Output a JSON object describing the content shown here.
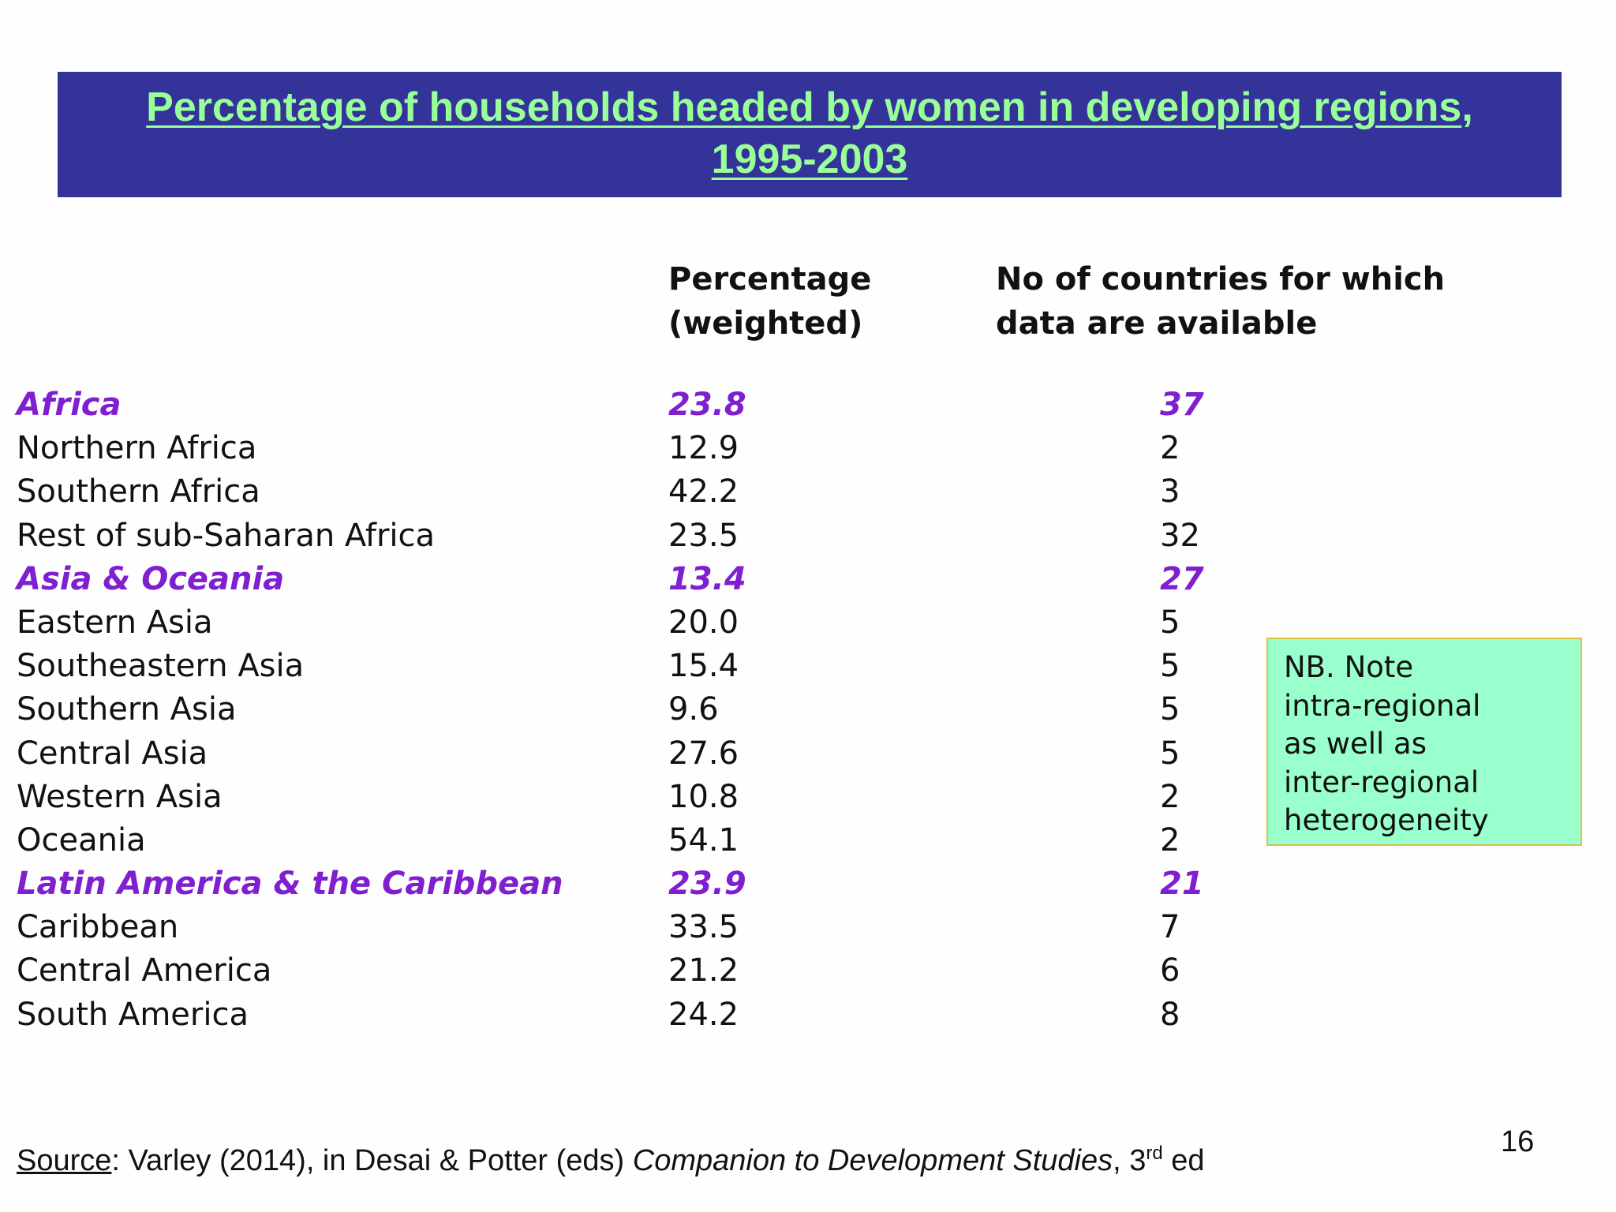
{
  "title": {
    "line1": "Percentage of households headed by women in developing regions",
    "line1_comma": ",",
    "line2": "1995-2003"
  },
  "columns": {
    "percentage": [
      "Percentage",
      "(weighted)"
    ],
    "countries": [
      "No of countries for which",
      "data are available"
    ]
  },
  "rows": [
    {
      "name": "Africa",
      "pct": "23.8",
      "count": "37",
      "region": true
    },
    {
      "name": "Northern Africa",
      "pct": "12.9",
      "count": "2",
      "region": false
    },
    {
      "name": "Southern Africa",
      "pct": "42.2",
      "count": "3",
      "region": false
    },
    {
      "name": "Rest of sub-Saharan Africa",
      "pct": "23.5",
      "count": "32",
      "region": false
    },
    {
      "name": "Asia & Oceania",
      "pct": "13.4",
      "count": "27",
      "region": true
    },
    {
      "name": "Eastern Asia",
      "pct": "20.0",
      "count": "5",
      "region": false
    },
    {
      "name": "Southeastern Asia",
      "pct": "15.4",
      "count": "5",
      "region": false
    },
    {
      "name": "Southern Asia",
      "pct": "9.6",
      "count": "5",
      "region": false
    },
    {
      "name": "Central Asia",
      "pct": "27.6",
      "count": "5",
      "region": false
    },
    {
      "name": "Western Asia",
      "pct": "10.8",
      "count": "2",
      "region": false
    },
    {
      "name": "Oceania",
      "pct": "54.1",
      "count": "2",
      "region": false
    },
    {
      "name": "Latin America & the Caribbean",
      "pct": "23.9",
      "count": "21",
      "region": true
    },
    {
      "name": "Caribbean",
      "pct": "33.5",
      "count": "7",
      "region": false
    },
    {
      "name": "Central America",
      "pct": "21.2",
      "count": "6",
      "region": false
    },
    {
      "name": "South America",
      "pct": "24.2",
      "count": "8",
      "region": false
    }
  ],
  "note": [
    "NB. Note",
    "intra-regional",
    "as well as",
    "inter-regional",
    "heterogeneity"
  ],
  "source": {
    "label": "Source",
    "text1": ": Varley (2014), in Desai & Potter (eds) ",
    "italic": "Companion to Development Studies",
    "text2": ", 3",
    "sup": "rd",
    "text3": " ed"
  },
  "page_number": "16",
  "colors": {
    "title_bg": "#333399",
    "title_text": "#99ff99",
    "region_text": "#7f1fcf",
    "note_bg": "#99ffcc",
    "note_border": "#e0c040"
  }
}
